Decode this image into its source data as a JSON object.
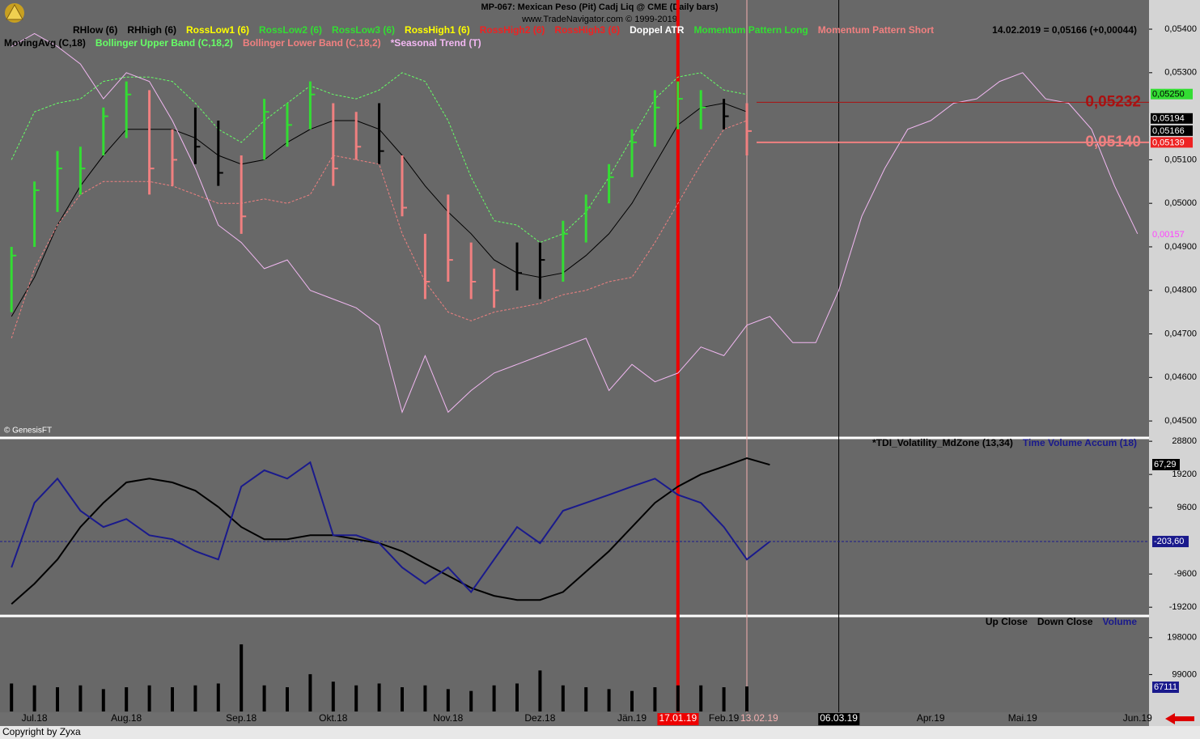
{
  "chart_data": [
    {
      "type": "ohlc",
      "title": "MP-067:  Mexican Peso (Pit) Cadj Liq @ CME  (Daily bars)",
      "subtitle": "www.TradeNavigator.com © 1999-2019",
      "status": "14.02.2019 = 0,05166 (+0,00044)",
      "source": "© GenesisFT",
      "indicators": [
        {
          "name": "RHlow (6)",
          "color": "#000000"
        },
        {
          "name": "RHhigh (6)",
          "color": "#000000"
        },
        {
          "name": "RossLow1 (6)",
          "color": "#ffff00"
        },
        {
          "name": "RossLow2 (6)",
          "color": "#33dd33"
        },
        {
          "name": "RossLow3 (6)",
          "color": "#33dd33"
        },
        {
          "name": "RossHigh1 (6)",
          "color": "#ffff00"
        },
        {
          "name": "RossHigh2 (6)",
          "color": "#ee2222"
        },
        {
          "name": "RossHigh3 (6)",
          "color": "#ee2222"
        },
        {
          "name": "Doppel ATR",
          "color": "#ffffff"
        },
        {
          "name": "Momentum Pattern Long",
          "color": "#33dd33"
        },
        {
          "name": "Momentum Pattern Short",
          "color": "#f08080"
        }
      ],
      "categories": [
        null,
        "Jul.18",
        null,
        null,
        null,
        "Aug.18",
        null,
        null,
        null,
        null,
        "Sep.18",
        null,
        null,
        null,
        "Okt.18",
        null,
        null,
        null,
        null,
        "Nov.18",
        null,
        null,
        null,
        "Dez.18",
        null,
        null,
        null,
        "Jän.19",
        null,
        "17.01.19",
        null,
        "Feb.19",
        "13.02.19",
        null,
        null,
        null,
        "06.03.19",
        null,
        null,
        null,
        "Apr.19",
        null,
        null,
        null,
        "Mai.19",
        null,
        null,
        null,
        null,
        "Jun.19"
      ],
      "high": [
        0.049,
        0.0505,
        0.0512,
        0.0513,
        0.0522,
        0.0528,
        0.0526,
        0.0517,
        0.0522,
        0.0519,
        0.0511,
        0.0524,
        0.0523,
        0.0528,
        0.0523,
        0.0521,
        0.0523,
        0.0511,
        0.0493,
        0.0502,
        0.0491,
        0.0485,
        0.0491,
        0.0491,
        0.0496,
        0.0502,
        0.0509,
        0.0517,
        0.0526,
        0.0528,
        0.0526,
        0.0524,
        0.0523,
        null,
        null,
        null,
        null,
        null,
        null,
        null,
        null,
        null,
        null,
        null,
        null,
        null,
        null,
        null,
        null,
        null
      ],
      "low": [
        0.0475,
        0.049,
        0.0498,
        0.0502,
        0.0511,
        0.0515,
        0.0502,
        0.0504,
        0.0509,
        0.0504,
        0.0493,
        0.051,
        0.0513,
        0.0517,
        0.0504,
        0.051,
        0.0509,
        0.0497,
        0.0478,
        0.0482,
        0.0478,
        0.0476,
        0.048,
        0.0478,
        0.0482,
        0.0491,
        0.05,
        0.0506,
        0.0513,
        0.0517,
        0.0517,
        0.0517,
        0.0511,
        null,
        null,
        null,
        null,
        null,
        null,
        null,
        null,
        null,
        null,
        null,
        null,
        null,
        null,
        null,
        null,
        null
      ],
      "close": [
        0.0488,
        0.0503,
        0.0508,
        0.0508,
        0.052,
        0.0525,
        0.0508,
        0.051,
        0.0513,
        0.0507,
        0.0497,
        0.0521,
        0.0518,
        0.0525,
        0.0508,
        0.0513,
        0.0512,
        0.0499,
        0.0482,
        0.0487,
        0.0482,
        0.048,
        0.0484,
        0.0487,
        0.0493,
        0.0499,
        0.0506,
        0.0514,
        0.0522,
        0.0524,
        0.0522,
        0.052,
        0.05166,
        null,
        null,
        null,
        null,
        null,
        null,
        null,
        null,
        null,
        null,
        null,
        null,
        null,
        null,
        null,
        null,
        null
      ],
      "bar_colors": [
        "#33dd33",
        "#33dd33",
        "#33dd33",
        "#33dd33",
        "#33dd33",
        "#33dd33",
        "#f08080",
        "#f08080",
        "#000000",
        "#000000",
        "#f08080",
        "#33dd33",
        "#33dd33",
        "#33dd33",
        "#f08080",
        "#f08080",
        "#000000",
        "#f08080",
        "#f08080",
        "#f08080",
        "#f08080",
        "#f08080",
        "#000000",
        "#000000",
        "#33dd33",
        "#33dd33",
        "#33dd33",
        "#33dd33",
        "#33dd33",
        "#33dd33",
        "#33dd33",
        "#000000",
        "#f08080",
        null,
        null,
        null,
        null,
        null,
        null,
        null,
        null,
        null,
        null,
        null,
        null,
        null,
        null,
        null,
        null,
        null
      ],
      "series": [
        {
          "name": "MovingAvg (C,18)",
          "color": "#000000",
          "dashed": false,
          "values": [
            0.0474,
            0.0483,
            0.0495,
            0.0504,
            0.0511,
            0.0517,
            0.0517,
            0.0517,
            0.0515,
            0.0511,
            0.0509,
            0.051,
            0.0514,
            0.0517,
            0.0519,
            0.0519,
            0.0517,
            0.0511,
            0.0504,
            0.0498,
            0.0493,
            0.0487,
            0.0484,
            0.0483,
            0.0484,
            0.0488,
            0.0493,
            0.05,
            0.0509,
            0.0518,
            0.0522,
            0.0523,
            0.0521,
            null,
            null,
            null,
            null,
            null,
            null,
            null,
            null,
            null,
            null,
            null,
            null,
            null,
            null,
            null,
            null,
            null
          ]
        },
        {
          "name": "Bollinger Upper Band (C,18,2)",
          "color": "#66ff66",
          "dashed": true,
          "values": [
            0.051,
            0.0521,
            0.0523,
            0.0524,
            0.0528,
            0.0529,
            0.0529,
            0.0528,
            0.0523,
            0.0517,
            0.0514,
            0.0519,
            0.0523,
            0.0527,
            0.0525,
            0.0524,
            0.0526,
            0.053,
            0.0528,
            0.0519,
            0.0506,
            0.0496,
            0.0495,
            0.0491,
            0.0493,
            0.0498,
            0.0506,
            0.0515,
            0.0524,
            0.0529,
            0.053,
            0.0526,
            0.0525,
            null,
            null,
            null,
            null,
            null,
            null,
            null,
            null,
            null,
            null,
            null,
            null,
            null,
            null,
            null,
            null,
            null
          ]
        },
        {
          "name": "Bollinger Lower Band (C,18,2)",
          "color": "#f08080",
          "dashed": true,
          "values": [
            0.0469,
            0.0485,
            0.0495,
            0.0502,
            0.0505,
            0.0505,
            0.0505,
            0.0504,
            0.0502,
            0.05,
            0.05,
            0.0501,
            0.05,
            0.0502,
            0.0511,
            0.051,
            0.0509,
            0.0493,
            0.0482,
            0.0475,
            0.0473,
            0.0475,
            0.0476,
            0.0477,
            0.0479,
            0.048,
            0.0482,
            0.0483,
            0.0491,
            0.05,
            0.0509,
            0.0517,
            0.0519,
            null,
            null,
            null,
            null,
            null,
            null,
            null,
            null,
            null,
            null,
            null,
            null,
            null,
            null,
            null,
            null,
            null
          ]
        },
        {
          "name": "*Seasonal Trend (T)",
          "color": "#f2b8f2",
          "dashed": false,
          "values": [
            0.0536,
            0.0539,
            0.0536,
            0.0532,
            0.0524,
            0.053,
            0.0528,
            0.0519,
            0.0508,
            0.0495,
            0.0491,
            0.0485,
            0.0487,
            0.048,
            0.0478,
            0.0476,
            0.0472,
            0.0452,
            0.0465,
            0.0452,
            0.0457,
            0.0461,
            0.0463,
            0.0465,
            0.0467,
            0.0469,
            0.0457,
            0.0463,
            0.0459,
            0.0461,
            0.0467,
            0.0465,
            0.0472,
            0.0474,
            0.0468,
            0.0468,
            0.048,
            0.0497,
            0.0508,
            0.0517,
            0.0519,
            0.0523,
            0.0524,
            0.0528,
            0.053,
            0.0524,
            0.0523,
            0.0517,
            0.0504,
            0.0493
          ]
        }
      ],
      "levels": [
        {
          "value": 0.05232,
          "label": "0,05232",
          "color": "#aa1111"
        },
        {
          "value": 0.0514,
          "label": "0,05140",
          "color": "#f08080"
        }
      ],
      "price_boxes": [
        {
          "value": 0.0525,
          "label": "0,05250",
          "bg": "#33dd33",
          "color": "#000000"
        },
        {
          "value": 0.05194,
          "label": "0,05194",
          "bg": "#000000",
          "color": "#ffffff"
        },
        {
          "value": 0.05166,
          "label": "0,05166",
          "bg": "#000000",
          "color": "#ffffff"
        },
        {
          "value": 0.05139,
          "label": "0,05139",
          "bg": "#ee2222",
          "color": "#ffffff"
        }
      ],
      "notes": [
        {
          "text": "0,00157",
          "color": "#ff44ff"
        }
      ],
      "ylim": [
        0.04463,
        0.05467
      ],
      "yticks": [
        {
          "value": 0.054,
          "label": "0,05400"
        },
        {
          "value": 0.053,
          "label": "0,05300"
        },
        {
          "value": 0.051,
          "label": "0,05100"
        },
        {
          "value": 0.05,
          "label": "0,05000"
        },
        {
          "value": 0.049,
          "label": "0,04900"
        },
        {
          "value": 0.048,
          "label": "0,04800"
        },
        {
          "value": 0.047,
          "label": "0,04700"
        },
        {
          "value": 0.046,
          "label": "0,04600"
        },
        {
          "value": 0.045,
          "label": "0,04500"
        }
      ]
    },
    {
      "type": "line",
      "series": [
        {
          "name": "*TDI_Volatility_MdZone (13,34)",
          "color": "#000000",
          "last_label": "67,29",
          "values": [
            -18300,
            -12400,
            -5400,
            4000,
            11000,
            16900,
            18000,
            16900,
            14500,
            9800,
            4000,
            470,
            470,
            1600,
            1600,
            470,
            -700,
            -3000,
            -6600,
            -10100,
            -13600,
            -15900,
            -17100,
            -17100,
            -14800,
            -8900,
            -3000,
            4000,
            11000,
            15700,
            19200,
            21500,
            23900,
            22000,
            null,
            null,
            null,
            null,
            null,
            null,
            null,
            null,
            null,
            null,
            null,
            null,
            null,
            null,
            null,
            null
          ]
        },
        {
          "name": "Time Volume Accum (18)",
          "color": "#1a1a8c",
          "values": [
            -7700,
            11000,
            18000,
            8700,
            4000,
            6300,
            1600,
            470,
            -3000,
            -5400,
            15700,
            20400,
            18000,
            22700,
            1600,
            1600,
            -700,
            -7700,
            -12400,
            -7700,
            -14800,
            -5400,
            4000,
            -700,
            8700,
            11000,
            13300,
            15700,
            18000,
            13300,
            11000,
            4000,
            -5400,
            -200,
            null,
            null,
            null,
            null,
            null,
            null,
            null,
            null,
            null,
            null,
            null,
            null,
            null,
            null,
            null,
            null
          ]
        }
      ],
      "ref_line": {
        "value": -203.6,
        "label": "-203,60",
        "color": "#1a1a8c"
      },
      "ylim": [
        -21500,
        29300
      ],
      "yticks": [
        28800,
        19200,
        9600,
        -9600,
        -19200
      ]
    },
    {
      "type": "bar",
      "legend": [
        {
          "text": "Up Close",
          "color": "#000000"
        },
        {
          "text": "Down Close",
          "color": "#000000"
        },
        {
          "text": "Volume",
          "color": "#1a1a8c"
        }
      ],
      "color": "#000000",
      "values": [
        75000,
        70000,
        65000,
        70000,
        60000,
        65000,
        70000,
        65000,
        70000,
        75000,
        180000,
        70000,
        65000,
        100000,
        80000,
        70000,
        75000,
        65000,
        70000,
        60000,
        55000,
        70000,
        75000,
        110000,
        70000,
        65000,
        60000,
        55000,
        65000,
        70000,
        70000,
        65000,
        67111,
        null,
        null,
        null,
        null,
        null,
        null,
        null,
        null,
        null,
        null,
        null,
        null,
        null,
        null,
        null,
        null,
        null
      ],
      "ylim": [
        0,
        251800
      ],
      "yticks": [
        198000,
        99000
      ]
    }
  ],
  "footer": "Copyright by Zyxa"
}
